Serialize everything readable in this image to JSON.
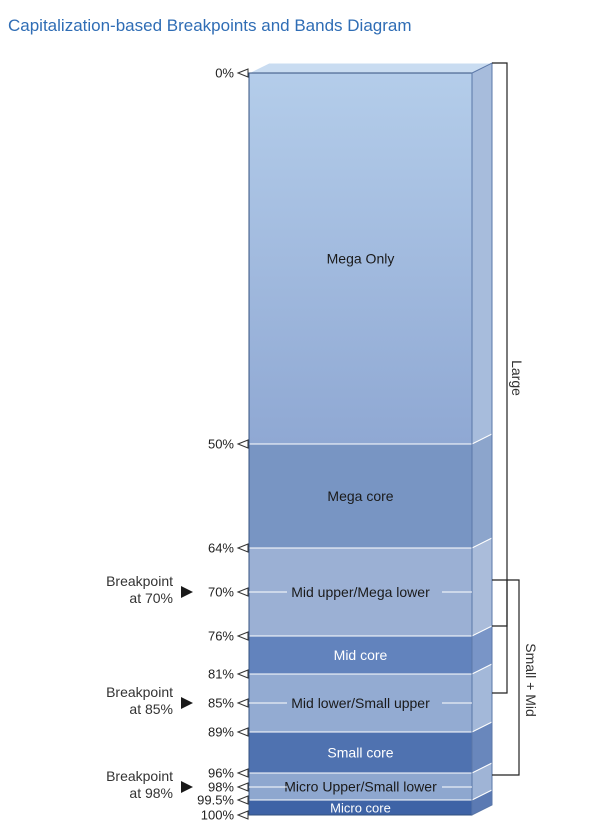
{
  "title": "Capitalization-based Breakpoints and Bands Diagram",
  "breakpoint_labels": [
    {
      "line1": "Breakpoint",
      "line2": "at 70%",
      "level": 70
    },
    {
      "line1": "Breakpoint",
      "line2": "at 85%",
      "level": 85
    },
    {
      "line1": "Breakpoint",
      "line2": "at 98%",
      "level": 98
    }
  ],
  "percent_marks": [
    {
      "label": "0%",
      "value": 0
    },
    {
      "label": "50%",
      "value": 50
    },
    {
      "label": "64%",
      "value": 64
    },
    {
      "label": "70%",
      "value": 70
    },
    {
      "label": "76%",
      "value": 76
    },
    {
      "label": "81%",
      "value": 81
    },
    {
      "label": "85%",
      "value": 85
    },
    {
      "label": "89%",
      "value": 89
    },
    {
      "label": "96%",
      "value": 96
    },
    {
      "label": "98%",
      "value": 98
    },
    {
      "label": "99.5%",
      "value": 99.5
    },
    {
      "label": "100%",
      "value": 100
    }
  ],
  "bands": [
    {
      "label": "Mega Only",
      "from": 0,
      "to": 50,
      "color": "#98b0d6",
      "dark_text": true
    },
    {
      "label": "Mega core",
      "from": 50,
      "to": 64,
      "color": "#7895c3",
      "dark_text": true
    },
    {
      "label": "Mid upper/Mega lower",
      "from": 64,
      "to": 76,
      "color": "#9bb0d4",
      "dark_text": true
    },
    {
      "label": "Mid core",
      "from": 76,
      "to": 81,
      "color": "#6283bd",
      "dark_text": false
    },
    {
      "label": "Mid lower/Small upper",
      "from": 81,
      "to": 89,
      "color": "#93abd2",
      "dark_text": true
    },
    {
      "label": "Small core",
      "from": 89,
      "to": 96,
      "color": "#4f72b0",
      "dark_text": false
    },
    {
      "label": "Micro Upper/Small lower",
      "from": 96,
      "to": 99.5,
      "color": "#8ea7cf",
      "dark_text": true
    },
    {
      "label": "Micro core",
      "from": 99.5,
      "to": 100,
      "color": "#3e63a6",
      "dark_text": false
    }
  ],
  "groups": [
    {
      "label": "Large",
      "from": 0,
      "to": 76
    },
    {
      "label": "Small + Mid",
      "from": 70,
      "to": 98
    }
  ]
}
